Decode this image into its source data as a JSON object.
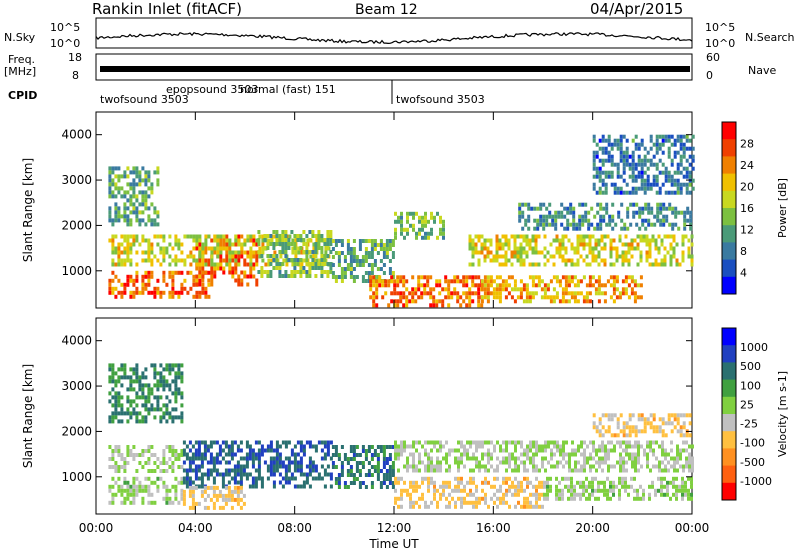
{
  "header": {
    "station": "Rankin Inlet (fitACF)",
    "beam": "Beam 12",
    "date": "04/Apr/2015"
  },
  "top_panel_labels": {
    "nsky": "N.Sky",
    "nsearch": "N.Search",
    "freq": "Freq.",
    "freq_unit": "[MHz]",
    "nave": "Nave",
    "cpid": "CPID",
    "left_ticks_noise": [
      "10^5",
      "10^0"
    ],
    "right_ticks_noise": [
      "10^5",
      "10^0"
    ],
    "left_ticks_freq": [
      "18",
      "8"
    ],
    "right_ticks_freq": [
      "60",
      "0"
    ]
  },
  "cpid_segments": [
    {
      "label": "twofsound",
      "num": "3503"
    },
    {
      "label": "epopsound",
      "num": "3503"
    },
    {
      "label": "normal (fast)",
      "num": "151"
    },
    {
      "label": "twofsound",
      "num": "3503"
    }
  ],
  "chart_data": [
    {
      "type": "heatmap",
      "title": "",
      "quantity": "Power",
      "ylabel": "Slant Range [km]",
      "xlabel": "",
      "xlim": [
        "00:00",
        "24:00"
      ],
      "ylim": [
        180,
        4500
      ],
      "yticks": [
        1000,
        2000,
        3000,
        4000
      ],
      "colorbar_label": "Power [dB]",
      "colorbar_ticks": [
        4,
        8,
        12,
        16,
        20,
        24,
        28
      ],
      "colorbar_colors": [
        "#0000ff",
        "#1a4fc0",
        "#3a7aa0",
        "#4a9a78",
        "#7cc040",
        "#c8d820",
        "#f0c000",
        "#f08000",
        "#f04000",
        "#ff0000"
      ],
      "bands": [
        {
          "t0": 0.5,
          "t1": 4.5,
          "r0": 400,
          "r1": 1000,
          "value": 26
        },
        {
          "t0": 4.0,
          "t1": 6.5,
          "r0": 700,
          "r1": 1800,
          "value": 26
        },
        {
          "t0": 0.5,
          "t1": 9.5,
          "r0": 1100,
          "r1": 1800,
          "value": 18
        },
        {
          "t0": 0.5,
          "t1": 2.5,
          "r0": 2000,
          "r1": 3300,
          "value": 12
        },
        {
          "t0": 6.5,
          "t1": 9.5,
          "r0": 900,
          "r1": 1900,
          "value": 14
        },
        {
          "t0": 9.5,
          "t1": 12,
          "r0": 800,
          "r1": 1700,
          "value": 12
        },
        {
          "t0": 11,
          "t1": 15.5,
          "r0": 200,
          "r1": 900,
          "value": 25
        },
        {
          "t0": 12,
          "t1": 14,
          "r0": 1700,
          "r1": 2300,
          "value": 14
        },
        {
          "t0": 15,
          "t1": 24,
          "r0": 1100,
          "r1": 1800,
          "value": 18
        },
        {
          "t0": 15.5,
          "t1": 22,
          "r0": 300,
          "r1": 900,
          "value": 22
        },
        {
          "t0": 17,
          "t1": 24,
          "r0": 1900,
          "r1": 2500,
          "value": 10
        },
        {
          "t0": 20,
          "t1": 24,
          "r0": 2700,
          "r1": 4000,
          "value": 8
        }
      ]
    },
    {
      "type": "heatmap",
      "title": "",
      "quantity": "Velocity",
      "ylabel": "Slant Range [km]",
      "xlabel": "Time UT",
      "xlim": [
        "00:00",
        "24:00"
      ],
      "ylim": [
        180,
        4500
      ],
      "yticks": [
        1000,
        2000,
        3000,
        4000
      ],
      "xticks": [
        "00:00",
        "04:00",
        "08:00",
        "12:00",
        "16:00",
        "20:00",
        "00:00"
      ],
      "colorbar_label": "Velocity [m s-1]",
      "colorbar_ticks": [
        1000,
        500,
        100,
        25,
        -25,
        -100,
        -500,
        -1000
      ],
      "colorbar_colors": [
        "#0000ff",
        "#2040c0",
        "#2a7070",
        "#40a040",
        "#80d040",
        "#c0c0c0",
        "#ffc040",
        "#ff9020",
        "#ff6010",
        "#ff0000"
      ],
      "bands": [
        {
          "t0": 0.5,
          "t1": 3.5,
          "r0": 2200,
          "r1": 3500,
          "value": 500
        },
        {
          "t0": 0.5,
          "t1": 3.5,
          "r0": 1100,
          "r1": 1700,
          "value": 0
        },
        {
          "t0": 0.5,
          "t1": 3.5,
          "r0": 400,
          "r1": 1000,
          "value": 60
        },
        {
          "t0": 3.5,
          "t1": 9.5,
          "r0": 800,
          "r1": 1800,
          "value": 700
        },
        {
          "t0": 3.5,
          "t1": 6,
          "r0": 300,
          "r1": 800,
          "value": -300
        },
        {
          "t0": 9.5,
          "t1": 12,
          "r0": 800,
          "r1": 1700,
          "value": 600
        },
        {
          "t0": 12,
          "t1": 18,
          "r0": 300,
          "r1": 1000,
          "value": -300
        },
        {
          "t0": 12,
          "t1": 24,
          "r0": 1100,
          "r1": 1800,
          "value": 0
        },
        {
          "t0": 18,
          "t1": 24,
          "r0": 500,
          "r1": 1000,
          "value": 60
        },
        {
          "t0": 20,
          "t1": 24,
          "r0": 1900,
          "r1": 2400,
          "value": -300
        }
      ]
    }
  ]
}
